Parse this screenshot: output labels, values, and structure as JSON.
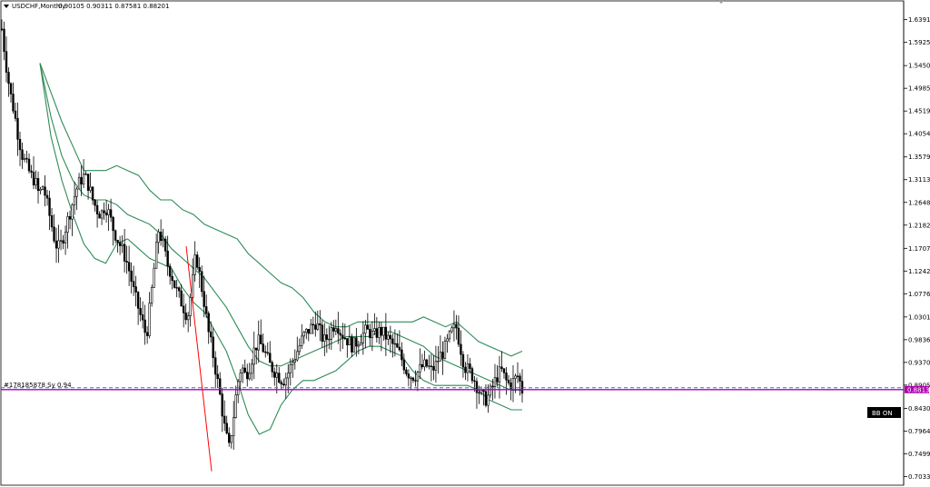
{
  "header": {
    "symbol": "USDCHF,Monthly",
    "ohlc": "0.90105 0.90311 0.87581 0.88201"
  },
  "line_label": "#178185878 Sy 0.94",
  "badges": {
    "price": "0.88136",
    "bb_status": "BB ON"
  },
  "colors": {
    "background": "#ffffff",
    "candle": "#000000",
    "bollinger": "#2e8b57",
    "trend_line": "#ff0000",
    "price_line": "#b000b0",
    "dashed_line": "#4169e1",
    "price_badge": "#b000b0",
    "bb_badge": "#000000"
  },
  "chart_data": {
    "type": "candlestick",
    "symbol": "USDCHF",
    "timeframe": "Monthly",
    "y_axis_ticks": [
      "1.63910",
      "1.59255",
      "1.54505",
      "1.49850",
      "1.45195",
      "1.40540",
      "1.35790",
      "1.31135",
      "1.26480",
      "1.21825",
      "1.17070",
      "1.12420",
      "1.07765",
      "1.03015",
      "0.98360",
      "0.93705",
      "0.89050",
      "0.84300",
      "0.79645",
      "0.74990",
      "0.70335"
    ],
    "ylim": [
      0.6986,
      1.6477
    ],
    "current_price": 0.88136,
    "horizontal_line": 0.8814,
    "trend_line": {
      "from_price": 1.175,
      "to_price": 0.714
    },
    "price_path": [
      1.62,
      1.55,
      1.49,
      1.45,
      1.4,
      1.36,
      1.34,
      1.32,
      1.31,
      1.28,
      1.3,
      1.26,
      1.22,
      1.18,
      1.17,
      1.2,
      1.23,
      1.26,
      1.29,
      1.31,
      1.32,
      1.3,
      1.27,
      1.25,
      1.24,
      1.26,
      1.24,
      1.21,
      1.19,
      1.17,
      1.15,
      1.12,
      1.08,
      1.05,
      1.02,
      0.99,
      1.06,
      1.14,
      1.21,
      1.18,
      1.14,
      1.12,
      1.09,
      1.07,
      1.05,
      1.03,
      1.09,
      1.16,
      1.11,
      1.06,
      1.0,
      0.96,
      0.91,
      0.86,
      0.8,
      0.76,
      0.82,
      0.89,
      0.93,
      0.91,
      0.93,
      0.96,
      0.98,
      0.97,
      0.95,
      0.93,
      0.92,
      0.91,
      0.9,
      0.91,
      0.93,
      0.95,
      0.97,
      0.99,
      1.0,
      1.01,
      1.02,
      1.0,
      0.98,
      0.99,
      1.01,
      1.02,
      1.0,
      0.99,
      0.98,
      0.97,
      0.98,
      0.99,
      1.0,
      1.0,
      0.99,
      1.0,
      1.0,
      0.99,
      0.98,
      0.97,
      0.96,
      0.94,
      0.92,
      0.91,
      0.91,
      0.92,
      0.93,
      0.93,
      0.92,
      0.93,
      0.95,
      0.96,
      0.98,
      1.0,
      1.01,
      0.97,
      0.93,
      0.92,
      0.91,
      0.89,
      0.87,
      0.86,
      0.87,
      0.89,
      0.91,
      0.92,
      0.9,
      0.89,
      0.9,
      0.91,
      0.88
    ],
    "bollinger": {
      "upper": [
        1.55,
        1.49,
        1.43,
        1.38,
        1.33,
        1.33,
        1.33,
        1.34,
        1.33,
        1.32,
        1.29,
        1.27,
        1.27,
        1.25,
        1.24,
        1.22,
        1.21,
        1.2,
        1.19,
        1.16,
        1.14,
        1.12,
        1.1,
        1.09,
        1.07,
        1.04,
        1.02,
        1.01,
        1.01,
        1.02,
        1.02,
        1.02,
        1.02,
        1.02,
        1.02,
        1.03,
        1.02,
        1.01,
        1.02,
        1.0,
        0.98,
        0.97,
        0.96,
        0.95,
        0.96
      ],
      "middle": [
        1.55,
        1.44,
        1.36,
        1.31,
        1.28,
        1.27,
        1.27,
        1.26,
        1.24,
        1.23,
        1.22,
        1.2,
        1.17,
        1.15,
        1.13,
        1.11,
        1.08,
        1.05,
        1.01,
        0.97,
        0.94,
        0.93,
        0.93,
        0.94,
        0.95,
        0.96,
        0.97,
        0.98,
        0.99,
        0.99,
        0.99,
        1.0,
        1.0,
        0.99,
        0.98,
        0.97,
        0.95,
        0.94,
        0.93,
        0.92,
        0.91,
        0.9,
        0.89,
        0.88,
        0.88
      ],
      "lower": [
        1.55,
        1.4,
        1.31,
        1.24,
        1.18,
        1.15,
        1.14,
        1.18,
        1.19,
        1.17,
        1.15,
        1.14,
        1.13,
        1.09,
        1.06,
        1.04,
        1.0,
        0.96,
        0.9,
        0.83,
        0.79,
        0.8,
        0.85,
        0.88,
        0.9,
        0.9,
        0.91,
        0.92,
        0.94,
        0.96,
        0.97,
        0.97,
        0.96,
        0.95,
        0.92,
        0.9,
        0.89,
        0.89,
        0.89,
        0.89,
        0.88,
        0.86,
        0.85,
        0.84,
        0.84
      ]
    }
  }
}
